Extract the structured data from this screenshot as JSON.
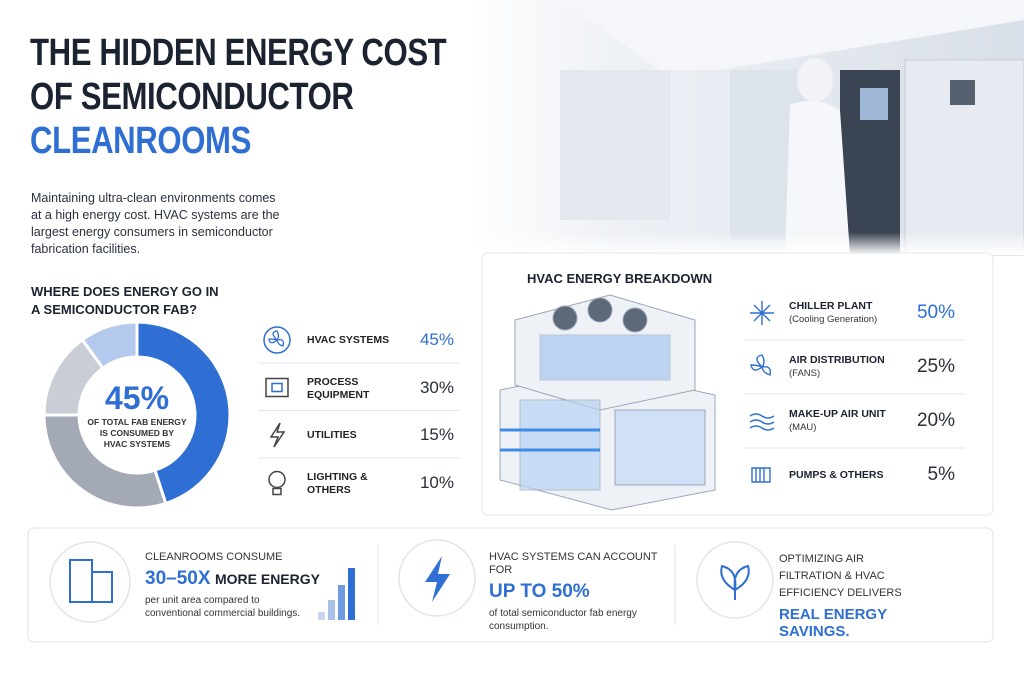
{
  "header": {
    "title_line1": "THE HIDDEN ENERGY COST",
    "title_line2": "OF SEMICONDUCTOR",
    "title_highlight": "CLEANROOMS",
    "intro": [
      "Maintaining ultra-clean environments comes",
      "at a high energy cost. HVAC systems are the",
      "largest energy consumers in semiconductor",
      "fabrication facilities."
    ]
  },
  "chart_data": {
    "type": "donut",
    "title_lines": [
      "WHERE DOES ENERGY GO IN",
      "A SEMICONDUCTOR FAB?"
    ],
    "categories": [
      "HVAC SYSTEMS",
      "PROCESS EQUIPMENT",
      "UTILITIES",
      "LIGHTING & OTHERS"
    ],
    "values": [
      45,
      30,
      15,
      10
    ],
    "value_labels": [
      "45%",
      "30%",
      "15%",
      "10%"
    ],
    "colors": [
      "#2f6fd3",
      "#a3aab5",
      "#c9ced6",
      "#b3c9ee"
    ],
    "center_note": [
      "OF TOTAL FAB ENERGY",
      "IS CONSUMED BY",
      "HVAC SYSTEMS"
    ]
  },
  "hvac_breakdown": {
    "title": "HVAC ENERGY BREAKDOWN",
    "items": [
      {
        "name": "CHILLER PLANT",
        "detail": "(Cooling Generation)",
        "value": "50%"
      },
      {
        "name": "AIR DISTRIBUTION",
        "detail": "(FANS)",
        "value": "25%"
      },
      {
        "name": "MAKE-UP AIR UNIT",
        "detail": "(MAU)",
        "value": "20%"
      },
      {
        "name": "PUMPS & OTHERS",
        "detail": "",
        "value": "5%"
      }
    ]
  },
  "facts": [
    {
      "lead": "CLEANROOMS CONSUME",
      "highlight": "30–50X",
      "highlight_rest": "MORE ENERGY",
      "body": "per unit area compared to conventional commercial buildings."
    },
    {
      "lead": "HVAC SYSTEMS CAN ACCOUNT FOR",
      "highlight": "UP TO 50%",
      "body": "of total semiconductor fab energy consumption."
    },
    {
      "lead": "OPTIMIZING AIR FILTRATION & HVAC EFFICIENCY DELIVERS",
      "highlight": "REAL ENERGY SAVINGS."
    }
  ]
}
